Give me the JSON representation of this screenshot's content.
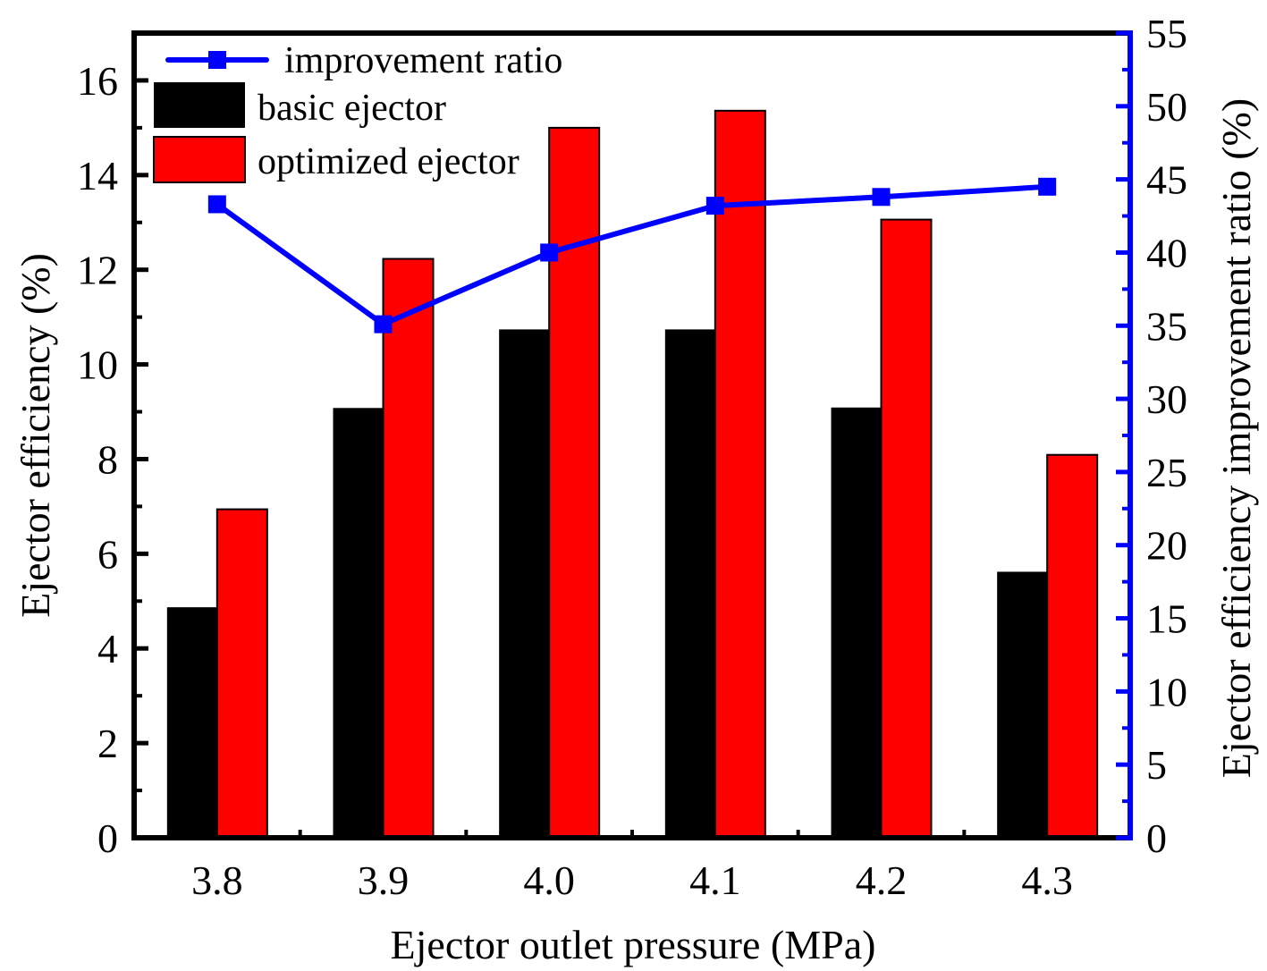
{
  "chart_data": {
    "type": "bar",
    "title": "",
    "xlabel": "Ejector outlet pressure (MPa)",
    "ylabel": "Ejector efficiency (%)",
    "y2label": "Ejector efficiency improvement ratio (%)",
    "categories": [
      "3.8",
      "3.9",
      "4.0",
      "4.1",
      "4.2",
      "4.3"
    ],
    "ylim": [
      0,
      17
    ],
    "y2lim": [
      0,
      55
    ],
    "yticks": [
      0,
      2,
      4,
      6,
      8,
      10,
      12,
      14,
      16
    ],
    "y2ticks": [
      0,
      5,
      10,
      15,
      20,
      25,
      30,
      35,
      40,
      45,
      50,
      55
    ],
    "grid": false,
    "legend_position": "top-left",
    "series": [
      {
        "name": "basic ejector",
        "type": "bar",
        "axis": "left",
        "color": "#000000",
        "values": [
          4.87,
          9.08,
          10.74,
          10.74,
          9.09,
          5.62
        ]
      },
      {
        "name": "optimized ejector",
        "type": "bar",
        "axis": "left",
        "color": "#ff0000",
        "values": [
          6.94,
          12.23,
          15.0,
          15.36,
          13.06,
          8.09
        ]
      },
      {
        "name": "improvement ratio",
        "type": "line",
        "axis": "right",
        "color": "#0000ff",
        "marker": "square",
        "values": [
          43.3,
          35.1,
          40.0,
          43.2,
          43.8,
          44.5
        ]
      }
    ],
    "legend": [
      "improvement ratio",
      "basic ejector",
      "optimized ejector"
    ]
  }
}
